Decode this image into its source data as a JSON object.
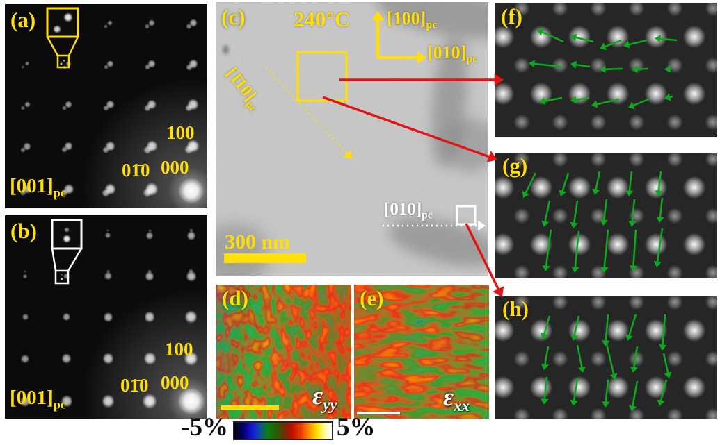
{
  "panels": {
    "a": {
      "label": "(a)",
      "spot_100": "100",
      "spot_000": "000",
      "spot_010": "01̄0",
      "zone": {
        "base": "[001]",
        "sub": "pc"
      }
    },
    "b": {
      "label": "(b)",
      "spot_100": "100",
      "spot_000": "000",
      "spot_010": "01̄0",
      "zone": {
        "base": "[001]",
        "sub": "pc"
      }
    },
    "c": {
      "label": "(c)",
      "temperature": "240°C",
      "axis_up": {
        "base": "[100]",
        "sub": "pc"
      },
      "axis_right": {
        "base": "[010]",
        "sub": "pc"
      },
      "axis_diag": {
        "base": "[1̄10]",
        "sub": "pc"
      },
      "wall_axis": {
        "base": "[010]",
        "sub": "pc"
      },
      "scale_bar": "300 nm"
    },
    "d": {
      "label": "(d)",
      "strain": {
        "base": "ε",
        "sub": "yy"
      }
    },
    "e": {
      "label": "(e)",
      "strain": {
        "base": "ε",
        "sub": "xx"
      }
    },
    "f": {
      "label": "(f)",
      "arrow_direction": "left"
    },
    "g": {
      "label": "(g)",
      "arrow_direction": "down"
    },
    "h": {
      "label": "(h)",
      "arrow_direction": "down"
    }
  },
  "colorbar": {
    "min": "-5%",
    "max": "5%"
  },
  "colors": {
    "annotation_yellow": "#ffdf05",
    "arrow_green": "#0cab1d",
    "connector_red": "#e01515",
    "colorbar_text": "#0d0d0d"
  }
}
